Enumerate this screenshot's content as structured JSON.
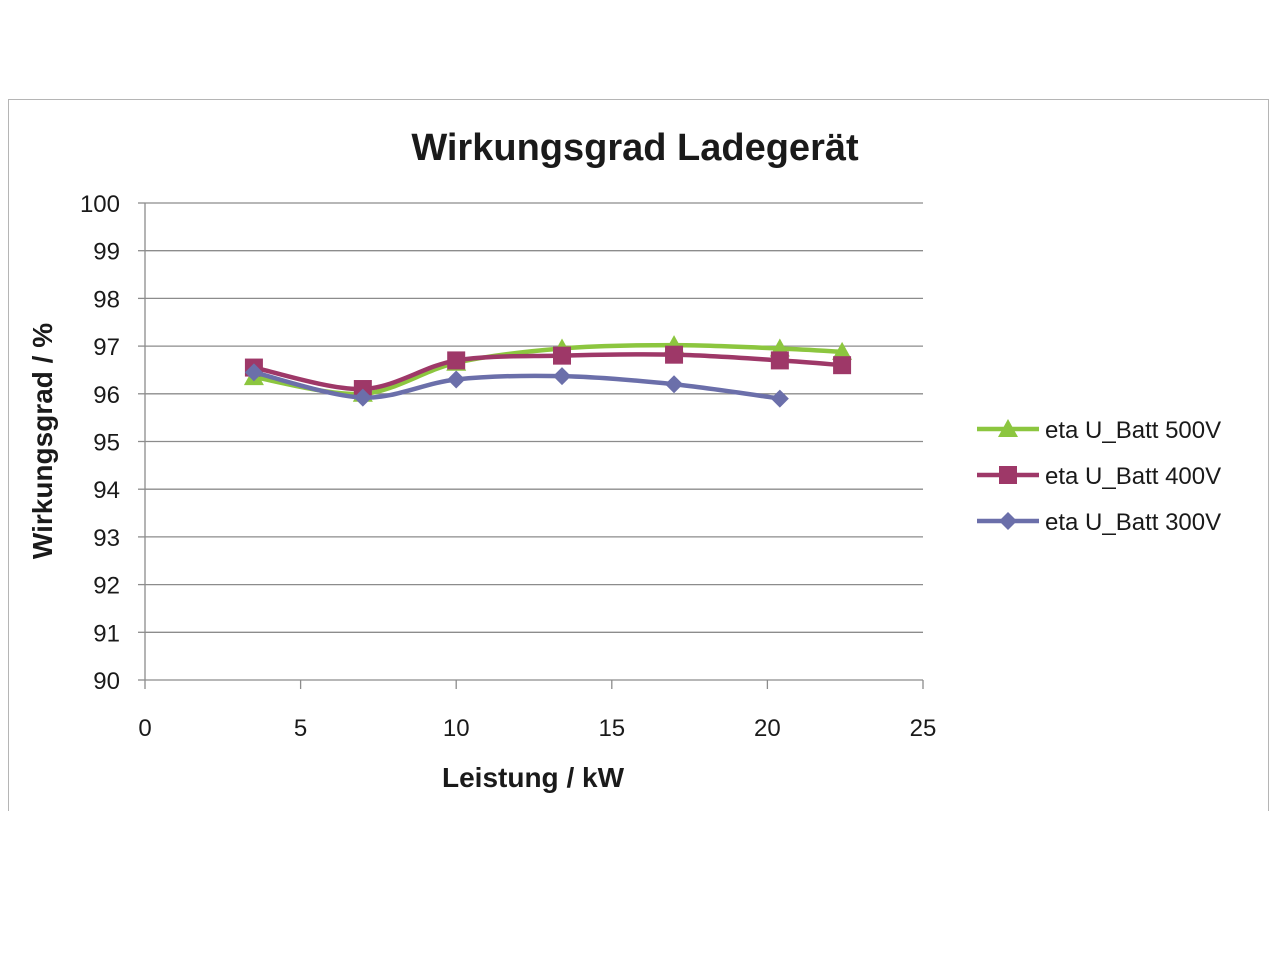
{
  "chart_data": {
    "type": "line",
    "title": "Wirkungsgrad Ladegerät",
    "xlabel": "Leistung / kW",
    "ylabel": "Wirkungsgrad / %",
    "xlim": [
      0,
      25
    ],
    "ylim": [
      90,
      100
    ],
    "xticks": [
      0,
      5,
      10,
      15,
      20,
      25
    ],
    "yticks": [
      90,
      91,
      92,
      93,
      94,
      95,
      96,
      97,
      98,
      99,
      100
    ],
    "grid": "horizontal",
    "legend_position": "right",
    "series": [
      {
        "name": "eta U_Batt 500V",
        "color": "#8cc63f",
        "marker": "triangle",
        "x": [
          3.5,
          7.0,
          10.0,
          13.4,
          17.0,
          20.4,
          22.4
        ],
        "y": [
          96.35,
          96.0,
          96.65,
          96.95,
          97.02,
          96.95,
          96.88
        ]
      },
      {
        "name": "eta U_Batt 400V",
        "color": "#9e3868",
        "marker": "square",
        "x": [
          3.5,
          7.0,
          10.0,
          13.4,
          17.0,
          20.4,
          22.4
        ],
        "y": [
          96.55,
          96.1,
          96.7,
          96.8,
          96.82,
          96.7,
          96.6
        ]
      },
      {
        "name": "eta U_Batt 300V",
        "color": "#6b6faa",
        "marker": "diamond",
        "x": [
          3.5,
          7.0,
          10.0,
          13.4,
          17.0,
          20.4
        ],
        "y": [
          96.45,
          95.92,
          96.3,
          96.37,
          96.2,
          95.9
        ]
      }
    ]
  }
}
